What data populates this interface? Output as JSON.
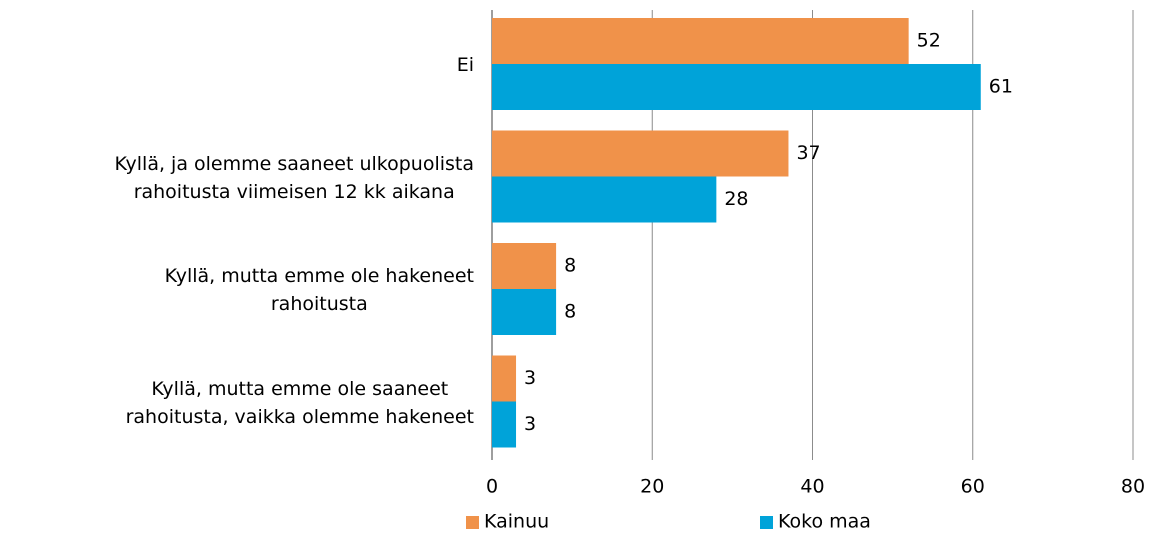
{
  "chart_data": {
    "type": "hbar",
    "categories": [
      "Ei",
      "Kyllä, ja olemme saaneet ulkopuolista\nrahoitusta viimeisen 12 kk aikana",
      "Kyllä, mutta emme ole hakeneet\nrahoitusta",
      "Kyllä, mutta emme ole saaneet\nrahoitusta, vaikka olemme hakeneet"
    ],
    "series": [
      {
        "name": "Kainuu",
        "color": "#f0924a",
        "values": [
          52,
          37,
          8,
          3
        ]
      },
      {
        "name": "Koko maa",
        "color": "#00a3d9",
        "values": [
          61,
          28,
          8,
          3
        ]
      }
    ],
    "xlim": [
      0,
      80
    ],
    "xticks": [
      0,
      20,
      40,
      60,
      80
    ],
    "grid": true,
    "legend": "bottom"
  }
}
